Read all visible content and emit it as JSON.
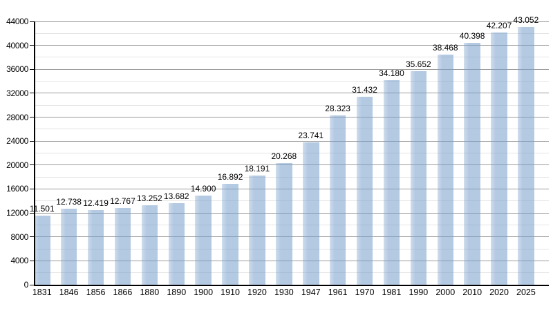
{
  "page": {
    "background": "#ffffff",
    "title": ""
  },
  "chart_data": {
    "type": "bar",
    "title": "",
    "xlabel": "",
    "ylabel": "",
    "categories": [
      "1831",
      "1846",
      "1856",
      "1866",
      "1880",
      "1890",
      "1900",
      "1910",
      "1920",
      "1930",
      "1947",
      "1961",
      "1970",
      "1981",
      "1990",
      "2000",
      "2010",
      "2020",
      "2025"
    ],
    "values": [
      11501,
      12738,
      12419,
      12767,
      13252,
      13682,
      14900,
      16892,
      18191,
      20268,
      23741,
      28323,
      31432,
      34180,
      35652,
      38468,
      40398,
      42207,
      43052
    ],
    "value_labels": [
      "11.501",
      "12.738",
      "12.419",
      "12.767",
      "13.252",
      "13.682",
      "14.900",
      "16.892",
      "18.191",
      "20.268",
      "23.741",
      "28.323",
      "31.432",
      "34.180",
      "35.652",
      "38.468",
      "40.398",
      "42.207",
      "43.052"
    ],
    "ylim": [
      0,
      44000
    ],
    "y_major_ticks": [
      0,
      4000,
      8000,
      12000,
      16000,
      20000,
      24000,
      28000,
      32000,
      36000,
      40000,
      44000
    ],
    "y_tick_labels": [
      "0",
      "4000",
      "8000",
      "12000",
      "16000",
      "20000",
      "24000",
      "28000",
      "32000",
      "36000",
      "40000",
      "44000"
    ],
    "y_minor_step": 2000,
    "grid": "horizontal-major-and-minor",
    "legend": "none",
    "bar_value_labels_shown": true
  },
  "colors": {
    "background": "#ffffff",
    "bar_fill": "#b7cfe7",
    "bar_fill_rgba": "rgba(119,158,203,0.55)",
    "bar_fill_light_rgba": "rgba(119,158,203,0.35)",
    "grid_major": "#999999",
    "grid_minor": "#e4e4e4",
    "axis": "#000000",
    "text": "#000000"
  }
}
